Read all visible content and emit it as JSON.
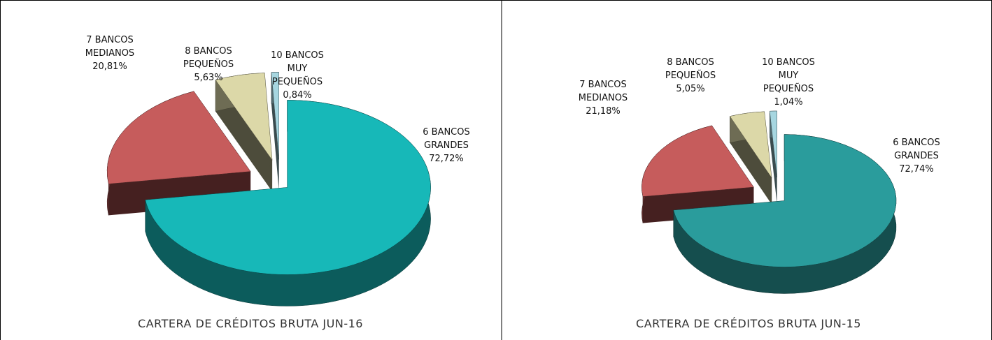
{
  "chart_data": [
    {
      "type": "pie",
      "title": "CARTERA DE CRÉDITOS BRUTA JUN-16",
      "categories": [
        "6 BANCOS\nGRANDES",
        "7 BANCOS\nMEDIANOS",
        "8 BANCOS\nPEQUEÑOS",
        "10 BANCOS\nMUY\nPEQUEÑOS"
      ],
      "values": [
        72.72,
        20.81,
        5.63,
        0.84
      ],
      "value_labels": [
        "72,72%",
        "20,81%",
        "5,63%",
        "0,84%"
      ],
      "colors": [
        "#17b8b8",
        "#c65c5c",
        "#dcd8a8",
        "#a6d6e0"
      ]
    },
    {
      "type": "pie",
      "title": "CARTERA DE CRÉDITOS BRUTA JUN-15",
      "categories": [
        "6 BANCOS\nGRANDES",
        "7 BANCOS\nMEDIANOS",
        "8 BANCOS\nPEQUEÑOS",
        "10 BANCOS\nMUY\nPEQUEÑOS"
      ],
      "values": [
        72.74,
        21.18,
        5.05,
        1.04
      ],
      "value_labels": [
        "72,74%",
        "21,18%",
        "5,05%",
        "1,04%"
      ],
      "colors": [
        "#2a9c9c",
        "#c65c5c",
        "#dcd8a8",
        "#a6d6e0"
      ]
    }
  ]
}
